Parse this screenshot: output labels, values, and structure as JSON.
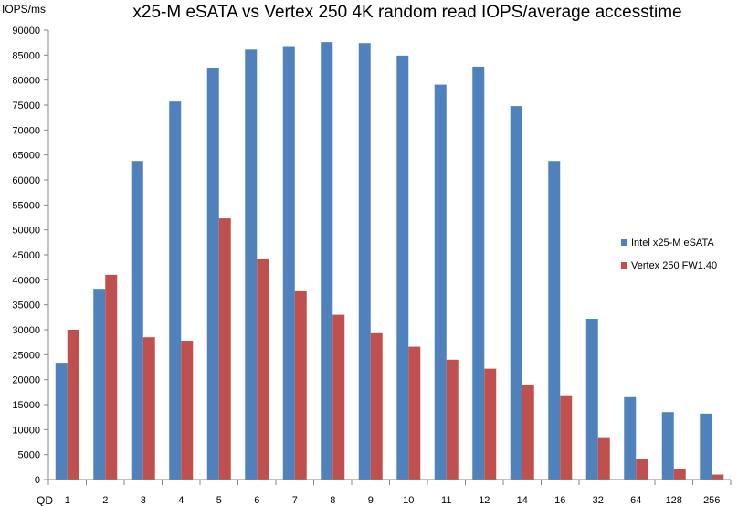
{
  "chart_data": {
    "type": "bar",
    "title": "x25-M eSATA vs Vertex 250 4K random read IOPS/average accesstime",
    "ylabel": "IOPS/ms",
    "xlabel": "QD",
    "ylim": [
      0,
      90000
    ],
    "ytick_step": 5000,
    "grid": false,
    "legend_position": "right",
    "categories": [
      "1",
      "2",
      "3",
      "4",
      "5",
      "6",
      "7",
      "8",
      "9",
      "10",
      "11",
      "12",
      "14",
      "16",
      "32",
      "64",
      "128",
      "256"
    ],
    "series": [
      {
        "name": "Intel x25-M eSATA",
        "color": "#4F81BD",
        "values": [
          23400,
          38200,
          63800,
          75700,
          82500,
          86100,
          86800,
          87600,
          87400,
          84900,
          79100,
          82700,
          74800,
          63800,
          32200,
          16500,
          13500,
          13200
        ]
      },
      {
        "name": "Vertex 250 FW1.40",
        "color": "#C0504D",
        "values": [
          30000,
          41000,
          28500,
          27800,
          52300,
          44100,
          37700,
          33000,
          29300,
          26600,
          24000,
          22200,
          18900,
          16700,
          8300,
          4100,
          2100,
          1000
        ]
      }
    ]
  }
}
